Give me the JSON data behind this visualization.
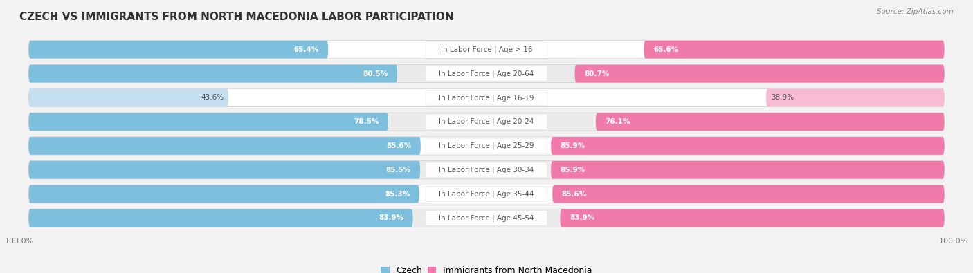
{
  "title": "Czech vs Immigrants from North Macedonia Labor Participation",
  "source": "Source: ZipAtlas.com",
  "categories": [
    "In Labor Force | Age > 16",
    "In Labor Force | Age 20-64",
    "In Labor Force | Age 16-19",
    "In Labor Force | Age 20-24",
    "In Labor Force | Age 25-29",
    "In Labor Force | Age 30-34",
    "In Labor Force | Age 35-44",
    "In Labor Force | Age 45-54"
  ],
  "czech_values": [
    65.4,
    80.5,
    43.6,
    78.5,
    85.6,
    85.5,
    85.3,
    83.9
  ],
  "immig_values": [
    65.6,
    80.7,
    38.9,
    76.1,
    85.9,
    85.9,
    85.6,
    83.9
  ],
  "czech_color": "#7fbfde",
  "czech_color_light": "#c5dff0",
  "immig_color": "#f07aaa",
  "immig_color_light": "#f7bcd4",
  "bg_color": "#f2f2f2",
  "row_bg": "#ffffff",
  "row_bg_alt": "#ebebeb",
  "label_bg": "#ffffff",
  "legend_czech": "Czech",
  "legend_immig": "Immigrants from North Macedonia",
  "title_fontsize": 11,
  "label_fontsize": 7.5,
  "value_fontsize": 7.5
}
